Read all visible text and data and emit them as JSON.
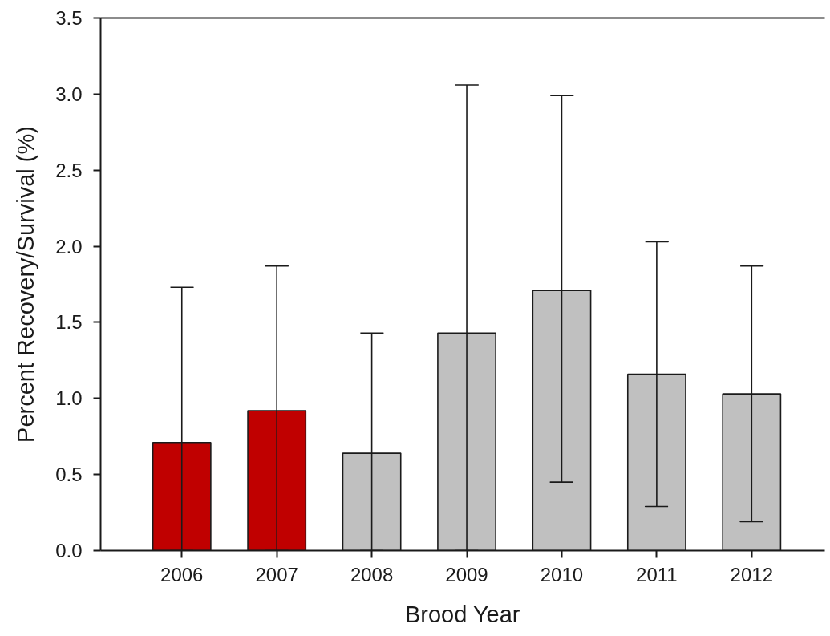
{
  "chart_data": {
    "type": "bar",
    "xlabel": "Brood Year",
    "ylabel": "Percent Recovery/Survival (%)",
    "categories": [
      "2006",
      "2007",
      "2008",
      "2009",
      "2010",
      "2011",
      "2012"
    ],
    "values": [
      0.71,
      0.92,
      0.64,
      1.43,
      1.71,
      1.16,
      1.03
    ],
    "colors": [
      "#c00000",
      "#c00000",
      "#c0c0c0",
      "#c0c0c0",
      "#c0c0c0",
      "#c0c0c0",
      "#c0c0c0"
    ],
    "errors": [
      [
        0,
        1.73
      ],
      [
        0,
        1.87
      ],
      [
        0,
        1.43
      ],
      [
        0,
        3.06
      ],
      [
        0.45,
        2.99
      ],
      [
        0.29,
        2.03
      ],
      [
        0.19,
        1.87
      ]
    ],
    "ylim": [
      0,
      3.5
    ],
    "yticks": [
      {
        "value": 0,
        "label": "0.0"
      },
      0.5,
      {
        "value": 1,
        "label": "1.0"
      },
      1.5,
      {
        "value": 2,
        "label": "2.0"
      },
      2.5,
      {
        "value": 3,
        "label": "3.0"
      },
      3.5
    ]
  }
}
